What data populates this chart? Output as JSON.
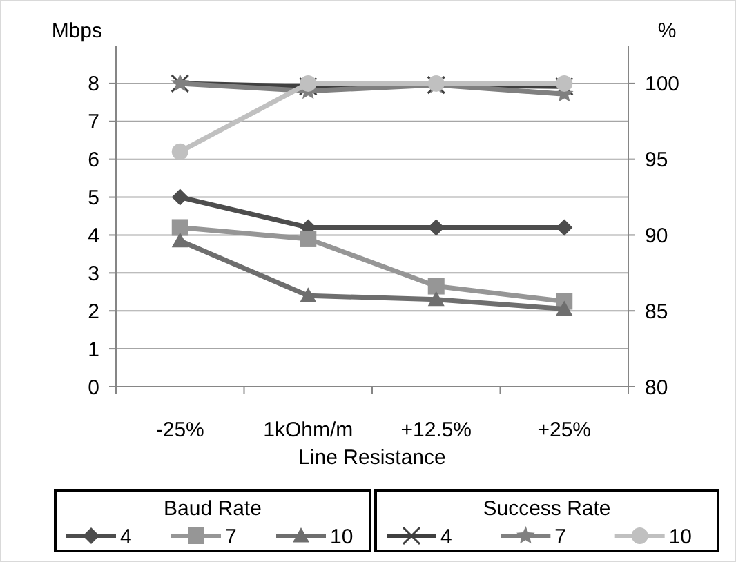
{
  "chart_data": {
    "type": "line",
    "categories": [
      "-25%",
      "1kOhm/m",
      "+12.5%",
      "+25%"
    ],
    "xlabel": "Line Resistance",
    "ylabel": "Mbps",
    "y2label": "%",
    "ylim": [
      0,
      9
    ],
    "yticks": [
      0,
      1,
      2,
      3,
      4,
      5,
      6,
      7,
      8
    ],
    "y2lim": [
      80,
      102.5
    ],
    "y2ticks": [
      80,
      85,
      90,
      95,
      100
    ],
    "grid": "y",
    "legend": "bottom",
    "legend_title": [
      "Baud Rate",
      "Success Rate"
    ],
    "series": [
      {
        "name": "4",
        "color": "#4d4d4d",
        "marker": "diamond",
        "values": [
          5,
          4.2,
          4.2,
          4.2
        ]
      },
      {
        "name": "7",
        "color": "#969696",
        "marker": "square",
        "values": [
          4.2,
          3.9,
          2.65,
          2.25
        ]
      },
      {
        "name": "10",
        "color": "#6e6e6e",
        "marker": "triangle",
        "values": [
          3.85,
          2.4,
          2.3,
          2.05
        ]
      },
      {
        "name": "4",
        "color": "#404040",
        "marker": "cross",
        "axis": "y2",
        "values": [
          100,
          99.8,
          99.9,
          99.8
        ]
      },
      {
        "name": "7",
        "color": "#808080",
        "marker": "star",
        "axis": "y2",
        "values": [
          100,
          99.5,
          99.9,
          99.3
        ]
      },
      {
        "name": "10",
        "color": "#c0c0c0",
        "marker": "circle",
        "axis": "y2",
        "values": [
          95.5,
          100,
          100,
          100
        ]
      }
    ]
  }
}
